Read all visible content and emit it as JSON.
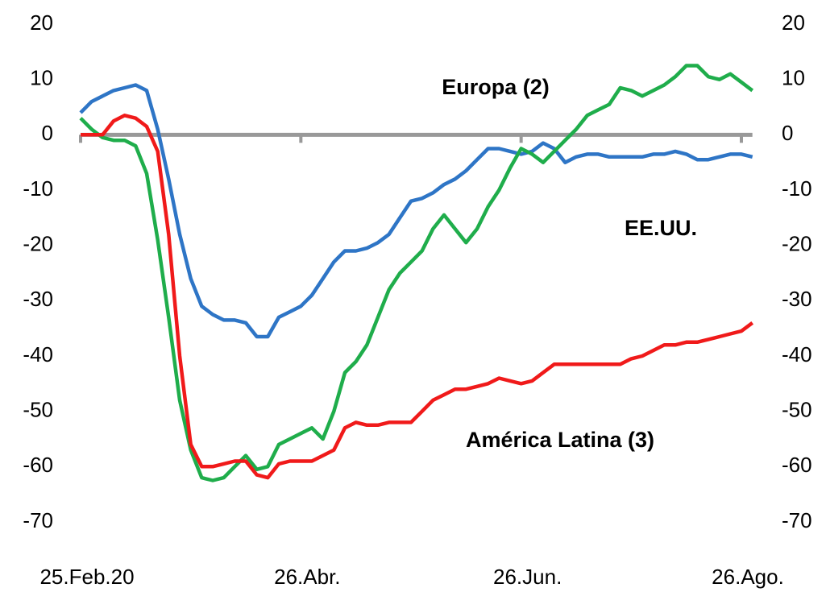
{
  "chart_data": {
    "type": "line",
    "categories": [
      "25.Feb.20",
      null,
      null,
      null,
      null,
      null,
      null,
      null,
      null,
      null,
      null,
      null,
      null,
      null,
      null,
      null,
      null,
      null,
      null,
      null,
      "26.Abr.",
      null,
      null,
      null,
      null,
      null,
      null,
      null,
      null,
      null,
      null,
      null,
      null,
      null,
      null,
      null,
      null,
      null,
      null,
      null,
      "26.Jun.",
      null,
      null,
      null,
      null,
      null,
      null,
      null,
      null,
      null,
      null,
      null,
      null,
      null,
      null,
      null,
      null,
      null,
      null,
      null,
      "26.Ago.",
      null
    ],
    "series": [
      {
        "name": "EE.UU.",
        "color": "#2e75c6",
        "values": [
          4,
          6,
          7,
          8,
          8.5,
          9,
          8,
          1,
          -8,
          -18,
          -26,
          -31,
          -32.5,
          -33.5,
          -33.5,
          -34,
          -36.5,
          -36.5,
          -33,
          -32,
          -31,
          -29,
          -26,
          -23,
          -21,
          -21,
          -20.5,
          -19.5,
          -18,
          -15,
          -12,
          -11.5,
          -10.5,
          -9,
          -8,
          -6.5,
          -4.5,
          -2.5,
          -2.5,
          -3,
          -3.5,
          -3,
          -1.5,
          -2.5,
          -5,
          -4,
          -3.5,
          -3.5,
          -4,
          -4,
          -4,
          -4,
          -3.5,
          -3.5,
          -3,
          -3.5,
          -4.5,
          -4.5,
          -4,
          -3.5,
          -3.5,
          -4
        ]
      },
      {
        "name": "Europa (2)",
        "color": "#1fad4b",
        "values": [
          3,
          1,
          -0.5,
          -1,
          -1,
          -2,
          -7,
          -19,
          -33,
          -48,
          -57,
          -62,
          -62.5,
          -62,
          -60,
          -58,
          -60.5,
          -60,
          -56,
          -55,
          -54,
          -53,
          -55,
          -50,
          -43,
          -41,
          -38,
          -33,
          -28,
          -25,
          -23,
          -21,
          -17,
          -14.5,
          -17,
          -19.5,
          -17,
          -13,
          -10,
          -6,
          -2.5,
          -3.5,
          -5,
          -3,
          -1,
          1,
          3.5,
          4.5,
          5.5,
          8.5,
          8,
          7,
          8,
          9,
          10.5,
          12.5,
          12.5,
          10.5,
          10,
          11,
          9.5,
          8
        ]
      },
      {
        "name": "América Latina (3)",
        "color": "#f01a1a",
        "values": [
          0,
          0,
          0,
          2.5,
          3.5,
          3,
          1.5,
          -3,
          -18,
          -40,
          -56,
          -60,
          -60,
          -59.5,
          -59,
          -59,
          -61.5,
          -62,
          -59.5,
          -59,
          -59,
          -59,
          -58,
          -57,
          -53,
          -52,
          -52.5,
          -52.5,
          -52,
          -52,
          -52,
          -50,
          -48,
          -47,
          -46,
          -46,
          -45.5,
          -45,
          -44,
          -44.5,
          -45,
          -44.5,
          -43,
          -41.5,
          -41.5,
          -41.5,
          -41.5,
          -41.5,
          -41.5,
          -41.5,
          -40.5,
          -40,
          -39,
          -38,
          -38,
          -37.5,
          -37.5,
          -37,
          -36.5,
          -36,
          -35.5,
          -34
        ]
      }
    ],
    "ylim": [
      -70,
      20
    ],
    "yticks": [
      -70,
      -60,
      -50,
      -40,
      -30,
      -20,
      -10,
      0,
      10,
      20
    ],
    "y2lim": [
      -70,
      20
    ],
    "y2ticks": [
      -70,
      -60,
      -50,
      -40,
      -30,
      -20,
      -10,
      0,
      10,
      20
    ]
  }
}
